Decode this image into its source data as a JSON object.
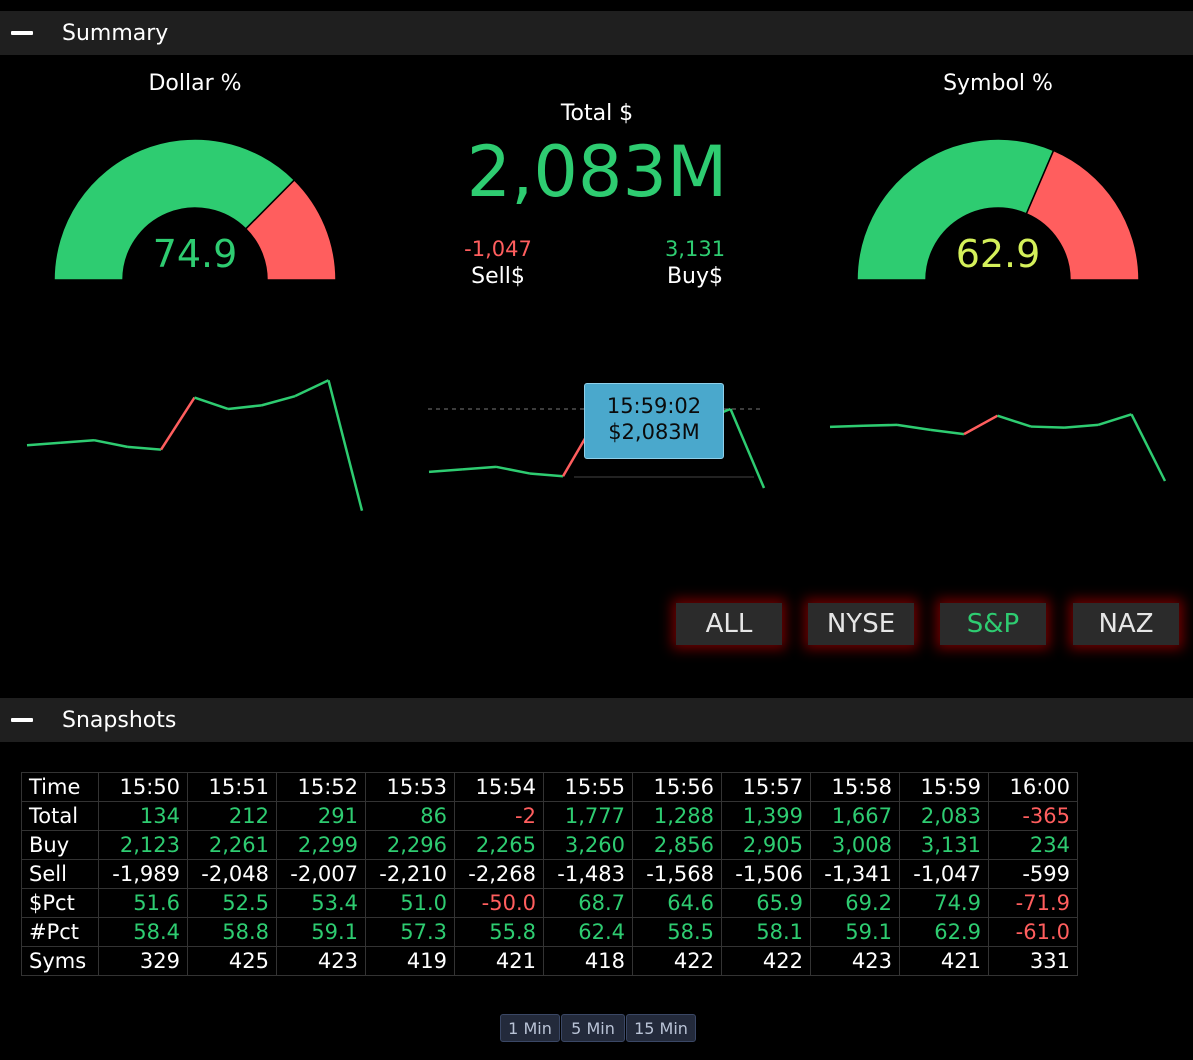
{
  "summary": {
    "header": "Summary",
    "dollar_pct": {
      "title": "Dollar %",
      "value": "74.9",
      "fraction": 0.749
    },
    "symbol_pct": {
      "title": "Symbol %",
      "value": "62.9",
      "fraction": 0.629
    },
    "total": {
      "label": "Total $",
      "value": "2,083M"
    },
    "sell": {
      "value": "-1,047",
      "label": "Sell$"
    },
    "buy": {
      "value": "3,131",
      "label": "Buy$"
    },
    "tooltip": {
      "time": "15:59:02",
      "value": "$2,083M"
    },
    "filters": [
      "ALL",
      "NYSE",
      "S&P",
      "NAZ"
    ],
    "active_filter": "S&P"
  },
  "colors": {
    "green": "#2ecc71",
    "red": "#ff5e5e",
    "yellow": "#d4f05a",
    "accent_glow": "#c80000"
  },
  "sparklines": {
    "dollar_pct": [
      51.6,
      52.5,
      53.4,
      51.0,
      50.0,
      68.7,
      64.6,
      65.9,
      69.2,
      74.9,
      28.1
    ],
    "total": [
      134,
      212,
      291,
      86,
      -2,
      1777,
      1288,
      1399,
      1667,
      2083,
      -365
    ],
    "symbol_pct": [
      58.4,
      58.8,
      59.1,
      57.3,
      55.8,
      62.4,
      58.5,
      58.1,
      59.1,
      62.9,
      39.0
    ]
  },
  "snapshots": {
    "header": "Snapshots",
    "times": [
      "15:50",
      "15:51",
      "15:52",
      "15:53",
      "15:54",
      "15:55",
      "15:56",
      "15:57",
      "15:58",
      "15:59",
      "16:00"
    ],
    "rows": [
      {
        "label": "Time",
        "cells": []
      },
      {
        "label": "Total",
        "cells": [
          "134",
          "212",
          "291",
          "86",
          "-2",
          "1,777",
          "1,288",
          "1,399",
          "1,667",
          "2,083",
          "-365"
        ]
      },
      {
        "label": "Buy",
        "cells": [
          "2,123",
          "2,261",
          "2,299",
          "2,296",
          "2,265",
          "3,260",
          "2,856",
          "2,905",
          "3,008",
          "3,131",
          "234"
        ]
      },
      {
        "label": "Sell",
        "cells": [
          "-1,989",
          "-2,048",
          "-2,007",
          "-2,210",
          "-2,268",
          "-1,483",
          "-1,568",
          "-1,506",
          "-1,341",
          "-1,047",
          "-599"
        ]
      },
      {
        "label": "$Pct",
        "cells": [
          "51.6",
          "52.5",
          "53.4",
          "51.0",
          "-50.0",
          "68.7",
          "64.6",
          "65.9",
          "69.2",
          "74.9",
          "-71.9"
        ]
      },
      {
        "label": "#Pct",
        "cells": [
          "58.4",
          "58.8",
          "59.1",
          "57.3",
          "55.8",
          "62.4",
          "58.5",
          "58.1",
          "59.1",
          "62.9",
          "-61.0"
        ]
      },
      {
        "label": "Syms",
        "cells": [
          "329",
          "425",
          "423",
          "419",
          "421",
          "418",
          "422",
          "422",
          "423",
          "421",
          "331"
        ]
      }
    ],
    "intervals": [
      "1 Min",
      "5 Min",
      "15 Min"
    ]
  }
}
